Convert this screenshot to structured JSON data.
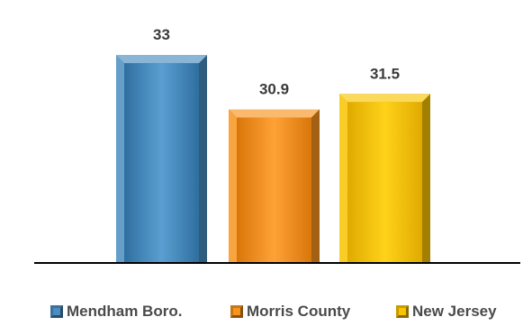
{
  "chart_data": {
    "type": "bar",
    "categories": [
      "Mendham Boro.",
      "Morris County",
      "New Jersey"
    ],
    "values": [
      33,
      30.9,
      31.5
    ],
    "value_labels": [
      "33",
      "30.9",
      "31.5"
    ],
    "colors": [
      "#4a8dc0",
      "#f7941d",
      "#f9c400"
    ],
    "title": "",
    "xlabel": "",
    "ylabel": "",
    "ylim": [
      25,
      33.6
    ],
    "grid": false,
    "legend": "bottom"
  }
}
